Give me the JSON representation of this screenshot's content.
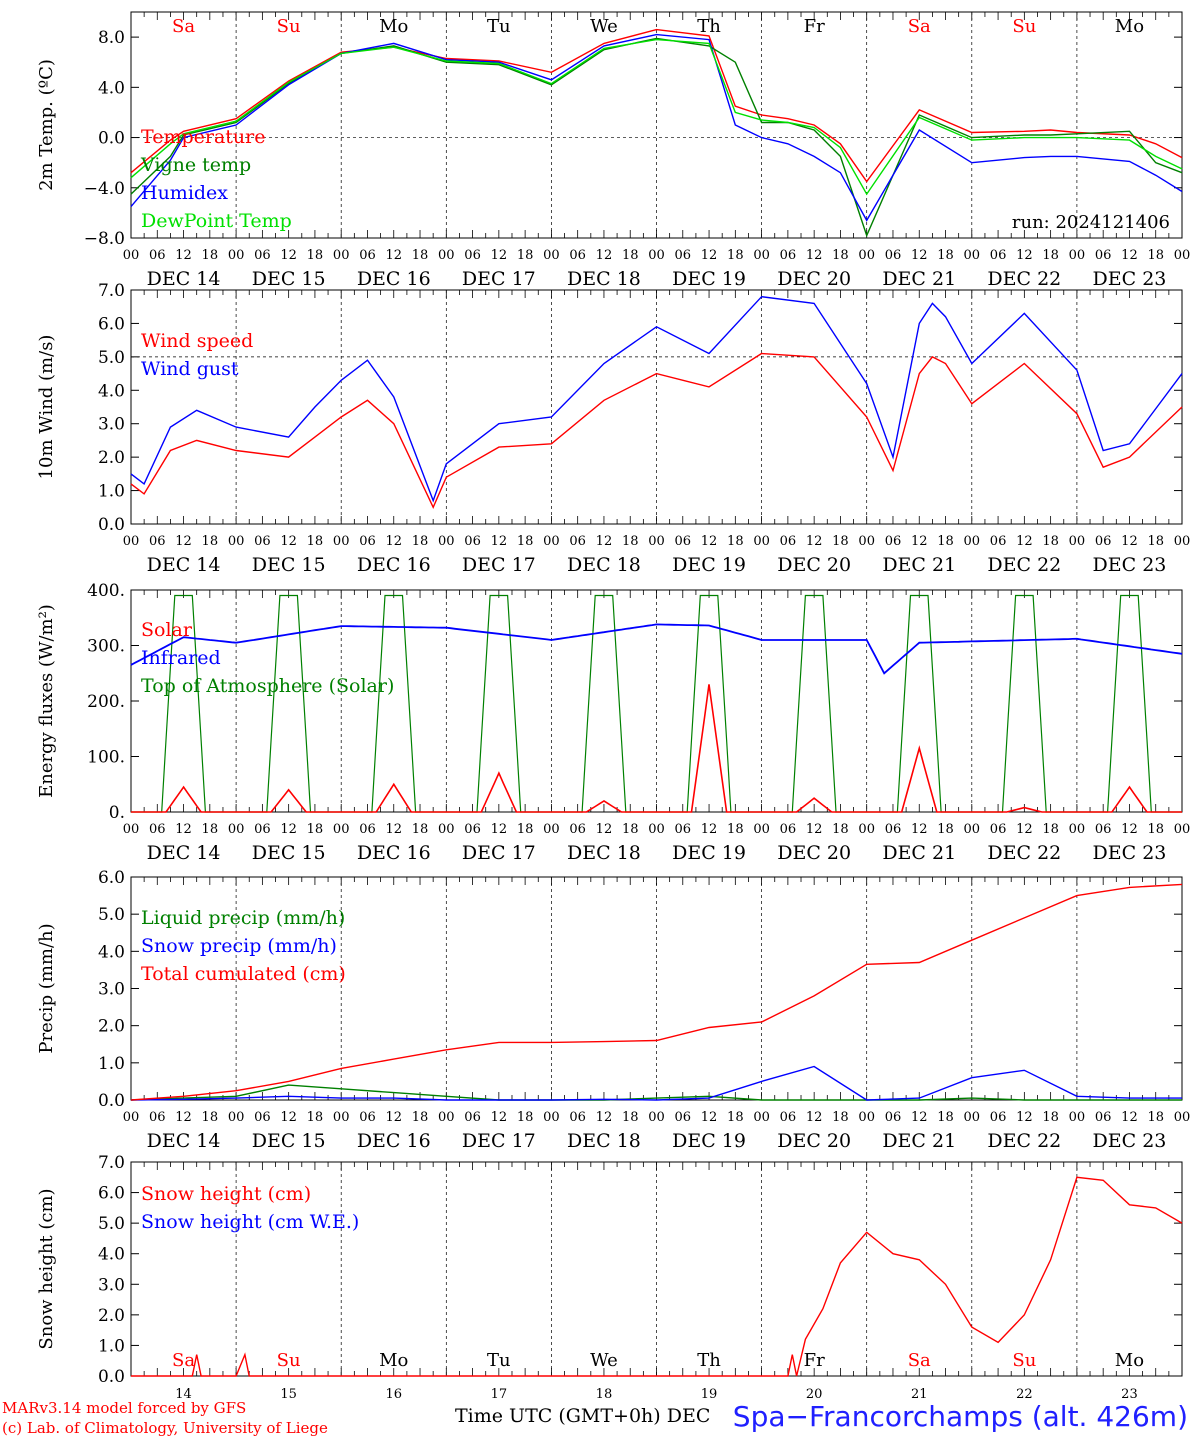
{
  "footer": {
    "credit_line1": "MARv3.14 model forced by GFS",
    "credit_line2": "(c) Lab. of Climatology, University of Liege",
    "xaxis_title": "Time UTC (GMT+0h) DEC",
    "station": "Spa−Francorchamps (alt. 426m)"
  },
  "colors": {
    "red": "#ff0000",
    "green": "#008000",
    "blue": "#0000ff",
    "lime": "#00e000"
  },
  "chart_data": [
    {
      "type": "line",
      "ylabel": "2m Temp. (ºC)",
      "ylim": [
        -8,
        10
      ],
      "yticks": [
        -8,
        -4,
        0,
        4,
        8
      ],
      "ytick_labels": [
        "−8.0",
        "−4.0",
        "0.0",
        "4.0",
        "8.0"
      ],
      "zero_line": 0,
      "weekdays": [
        "Sa",
        "Su",
        "Mo",
        "Tu",
        "We",
        "Th",
        "Fr",
        "Sa",
        "Su",
        "Mo"
      ],
      "weekday_colors": [
        "red",
        "red",
        "black",
        "black",
        "black",
        "black",
        "black",
        "red",
        "red",
        "black"
      ],
      "run_label": "run: 2024121406",
      "x_hours": [
        0,
        9,
        12,
        24,
        36,
        48,
        60,
        72,
        84,
        96,
        108,
        120,
        132,
        138,
        144,
        150,
        156,
        162,
        168,
        180,
        192,
        204,
        210,
        216,
        228,
        234,
        240
      ],
      "series": [
        {
          "name": "Temperature",
          "color": "red",
          "values": [
            -2.8,
            -0.2,
            0.5,
            1.5,
            4.5,
            6.8,
            7.2,
            6.3,
            6.1,
            5.2,
            7.5,
            8.6,
            8.1,
            2.5,
            1.8,
            1.5,
            1.0,
            -0.5,
            -3.5,
            2.2,
            0.4,
            0.5,
            0.6,
            0.4,
            0.2,
            -0.5,
            -1.6
          ]
        },
        {
          "name": "Vigne temp",
          "color": "green",
          "values": [
            -4.5,
            -1.5,
            0.2,
            1.2,
            4.3,
            6.7,
            7.3,
            6.0,
            5.8,
            4.2,
            7.0,
            7.9,
            7.3,
            6.0,
            1.2,
            1.2,
            0.6,
            -1.5,
            -7.8,
            1.8,
            0.0,
            0.2,
            0.2,
            0.3,
            0.5,
            -2.0,
            -2.8
          ]
        },
        {
          "name": "Humidex",
          "color": "blue",
          "values": [
            -5.5,
            -1.8,
            0.0,
            1.0,
            4.2,
            6.7,
            7.5,
            6.2,
            6.0,
            4.6,
            7.3,
            8.2,
            7.8,
            1.0,
            0.0,
            -0.5,
            -1.5,
            -2.8,
            -6.6,
            0.6,
            -2.0,
            -1.6,
            -1.5,
            -1.5,
            -1.9,
            -3.0,
            -4.3
          ]
        },
        {
          "name": "DewPoint Temp",
          "color": "lime",
          "values": [
            -3.2,
            -0.5,
            0.3,
            1.3,
            4.4,
            6.7,
            7.2,
            6.1,
            5.9,
            4.3,
            7.1,
            7.8,
            7.5,
            2.0,
            1.4,
            1.2,
            0.8,
            -0.8,
            -4.5,
            1.6,
            -0.2,
            0.0,
            0.0,
            0.0,
            -0.2,
            -1.5,
            -2.5
          ]
        }
      ]
    },
    {
      "type": "line",
      "ylabel": "10m Wind (m/s)",
      "ylim": [
        0,
        7
      ],
      "yticks": [
        0,
        1,
        2,
        3,
        4,
        5,
        6,
        7
      ],
      "ytick_labels": [
        "0.0",
        "1.0",
        "2.0",
        "3.0",
        "4.0",
        "5.0",
        "6.0",
        "7.0"
      ],
      "ref_line": 5,
      "x_hours": [
        0,
        3,
        9,
        15,
        24,
        36,
        42,
        48,
        54,
        60,
        69,
        72,
        84,
        96,
        108,
        120,
        132,
        144,
        156,
        168,
        174,
        180,
        183,
        186,
        192,
        204,
        216,
        222,
        228,
        240
      ],
      "series": [
        {
          "name": "Wind speed",
          "color": "red",
          "values": [
            1.2,
            0.9,
            2.2,
            2.5,
            2.2,
            2.0,
            2.6,
            3.2,
            3.7,
            3.0,
            0.5,
            1.4,
            2.3,
            2.4,
            3.7,
            4.5,
            4.1,
            5.1,
            5.0,
            3.2,
            1.6,
            4.5,
            5.0,
            4.8,
            3.6,
            4.8,
            3.3,
            1.7,
            2.0,
            3.5
          ]
        },
        {
          "name": "Wind gust",
          "color": "blue",
          "values": [
            1.5,
            1.2,
            2.9,
            3.4,
            2.9,
            2.6,
            3.5,
            4.3,
            4.9,
            3.8,
            0.7,
            1.8,
            3.0,
            3.2,
            4.8,
            5.9,
            5.1,
            6.8,
            6.6,
            4.2,
            2.0,
            6.0,
            6.6,
            6.2,
            4.8,
            6.3,
            4.6,
            2.2,
            2.4,
            4.5
          ]
        }
      ]
    },
    {
      "type": "line",
      "ylabel": "Energy fluxes (W/m²)",
      "ylim": [
        0,
        400
      ],
      "yticks": [
        0,
        100,
        200,
        300,
        400
      ],
      "ytick_labels": [
        "0.",
        "100.",
        "200.",
        "300.",
        "400."
      ],
      "solar_peaks_by_day": [
        45,
        40,
        50,
        70,
        20,
        230,
        25,
        115,
        8,
        45
      ],
      "toa_peak": 390,
      "infrared_points": {
        "x_hours": [
          0,
          12,
          24,
          48,
          72,
          96,
          120,
          132,
          144,
          168,
          172,
          180,
          216,
          240
        ],
        "values": [
          265,
          315,
          305,
          335,
          332,
          310,
          338,
          336,
          310,
          310,
          250,
          305,
          312,
          285
        ]
      },
      "series": [
        {
          "name": "Solar",
          "color": "red"
        },
        {
          "name": "Infrared",
          "color": "blue"
        },
        {
          "name": "Top of Atmosphere (Solar)",
          "color": "green"
        }
      ]
    },
    {
      "type": "line",
      "ylabel": "Precip (mm/h)",
      "ylim": [
        0,
        6
      ],
      "yticks": [
        0,
        1,
        2,
        3,
        4,
        5,
        6
      ],
      "ytick_labels": [
        "0.0",
        "1.0",
        "2.0",
        "3.0",
        "4.0",
        "5.0",
        "6.0"
      ],
      "x_hours": [
        0,
        12,
        24,
        36,
        48,
        60,
        72,
        84,
        96,
        108,
        120,
        132,
        144,
        156,
        168,
        180,
        192,
        204,
        216,
        228,
        240
      ],
      "series": [
        {
          "name": "Liquid precip (mm/h)",
          "color": "green",
          "values": [
            0.0,
            0.05,
            0.1,
            0.4,
            0.3,
            0.2,
            0.1,
            0.0,
            0.0,
            0.0,
            0.05,
            0.1,
            0.0,
            0.0,
            0.0,
            0.0,
            0.05,
            0.0,
            0.0,
            0.0,
            0.0
          ]
        },
        {
          "name": "Snow precip (mm/h)",
          "color": "blue",
          "values": [
            0.0,
            0.02,
            0.05,
            0.1,
            0.05,
            0.05,
            0.0,
            0.0,
            0.0,
            0.02,
            0.0,
            0.05,
            0.5,
            0.9,
            0.0,
            0.05,
            0.6,
            0.8,
            0.1,
            0.05,
            0.05
          ]
        },
        {
          "name": "Total cumulated (cm)",
          "color": "red",
          "values": [
            0.0,
            0.1,
            0.25,
            0.5,
            0.85,
            1.1,
            1.35,
            1.55,
            1.55,
            1.57,
            1.6,
            1.95,
            2.1,
            2.8,
            3.65,
            3.7,
            4.3,
            4.9,
            5.5,
            5.72,
            5.8
          ]
        }
      ]
    },
    {
      "type": "line",
      "ylabel": "Snow height (cm)",
      "ylim": [
        0,
        7
      ],
      "yticks": [
        0,
        1,
        2,
        3,
        4,
        5,
        6,
        7
      ],
      "ytick_labels": [
        "0.0",
        "1.0",
        "2.0",
        "3.0",
        "4.0",
        "5.0",
        "6.0",
        "7.0"
      ],
      "weekdays": [
        "Sa",
        "Su",
        "Mo",
        "Tu",
        "We",
        "Th",
        "Fr",
        "Sa",
        "Su",
        "Mo"
      ],
      "weekday_colors": [
        "red",
        "red",
        "black",
        "black",
        "black",
        "black",
        "black",
        "red",
        "red",
        "black"
      ],
      "day_numbers": [
        "14",
        "15",
        "16",
        "17",
        "18",
        "19",
        "20",
        "21",
        "22",
        "23"
      ],
      "x_hours": [
        0,
        14,
        15,
        16,
        24,
        26,
        27,
        28,
        40,
        150,
        151,
        152,
        154,
        158,
        162,
        168,
        174,
        180,
        186,
        192,
        198,
        204,
        210,
        216,
        222,
        228,
        234,
        240
      ],
      "series": [
        {
          "name": "Snow height (cm)",
          "color": "red",
          "values": [
            0,
            0,
            0.7,
            0,
            0,
            0.7,
            0,
            0,
            0,
            0,
            0.7,
            0,
            1.2,
            2.2,
            3.7,
            4.7,
            4.0,
            3.8,
            3.0,
            1.6,
            1.1,
            2.0,
            3.8,
            6.5,
            6.4,
            5.6,
            5.5,
            5.0
          ]
        },
        {
          "name": "Snow height (cm W.E.)",
          "color": "blue",
          "values": []
        }
      ]
    }
  ]
}
